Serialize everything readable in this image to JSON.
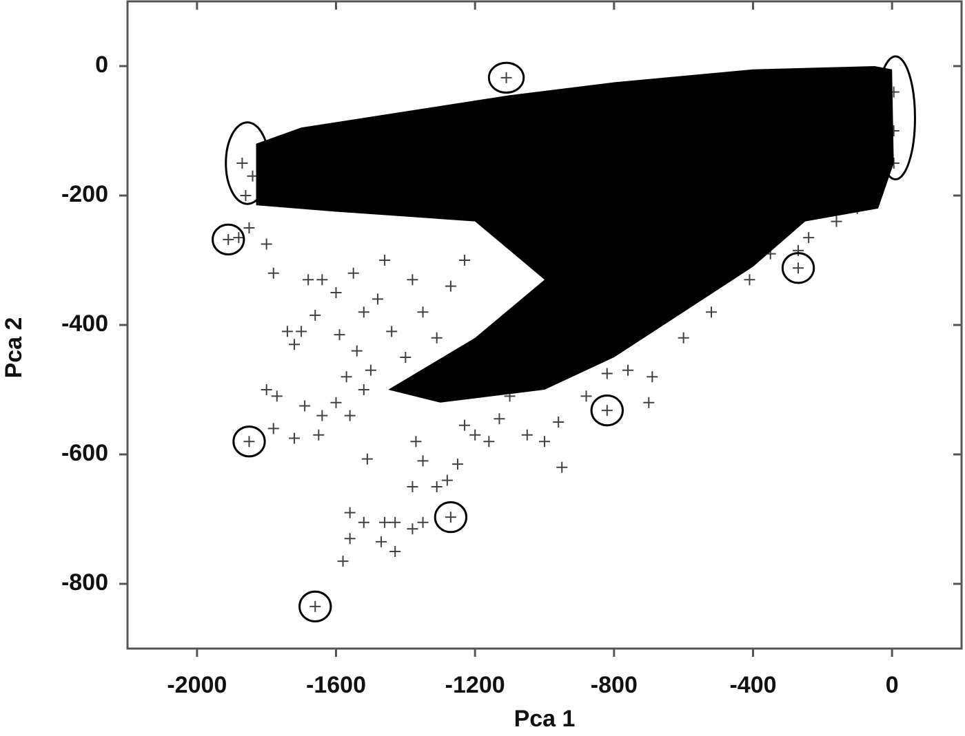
{
  "chart_data": {
    "type": "scatter",
    "xlabel": "Pca 1",
    "ylabel": "Pca 2",
    "xlim": [
      -2200,
      200
    ],
    "ylim": [
      -900,
      100
    ],
    "xticks": [
      -2000,
      -1600,
      -1200,
      -800,
      -400,
      0
    ],
    "yticks": [
      0,
      -200,
      -400,
      -600,
      -800
    ],
    "color": "#000000",
    "x": [
      -1880,
      -1850,
      -1800,
      -1780,
      -1740,
      -1700,
      -1660,
      -1680,
      -1640,
      -1720,
      -1800,
      -1770,
      -1720,
      -1780,
      -1690,
      -1650,
      -1640,
      -1600,
      -1570,
      -1560,
      -1520,
      -1590,
      -1540,
      -1500,
      -1480,
      -1520,
      -1440,
      -1400,
      -1380,
      -1350,
      -1310,
      -1270,
      -1230,
      -1550,
      -1600,
      -1460,
      -1370,
      -1380,
      -1350,
      -1310,
      -1250,
      -1230,
      -1200,
      -1160,
      -1130,
      -1100,
      -1050,
      -1000,
      -950,
      -960,
      -1510,
      -1520,
      -1460,
      -1430,
      -1470,
      -1430,
      -1560,
      -1580,
      -1560,
      -1380,
      -1350,
      -1280,
      -880,
      -820,
      -760,
      -700,
      -690,
      -600,
      -520,
      -410,
      -350,
      -270,
      -240,
      -160,
      -100,
      -1110,
      -1910,
      -1850,
      -1270,
      -1660,
      -820,
      -270,
      -1870,
      -1840,
      -1860,
      5,
      5,
      5
    ],
    "y": [
      -265,
      -250,
      -275,
      -320,
      -410,
      -410,
      -385,
      -330,
      -330,
      -430,
      -500,
      -510,
      -575,
      -560,
      -525,
      -570,
      -540,
      -520,
      -480,
      -540,
      -500,
      -415,
      -440,
      -470,
      -360,
      -380,
      -410,
      -450,
      -330,
      -380,
      -420,
      -340,
      -300,
      -320,
      -350,
      -300,
      -580,
      -650,
      -610,
      -650,
      -615,
      -555,
      -570,
      -580,
      -545,
      -510,
      -570,
      -580,
      -620,
      -550,
      -607,
      -705,
      -705,
      -705,
      -735,
      -750,
      -730,
      -765,
      -690,
      -715,
      -705,
      -640,
      -510,
      -475,
      -470,
      -520,
      -480,
      -420,
      -380,
      -330,
      -290,
      -285,
      -265,
      -240,
      -220,
      -18,
      -268,
      -580,
      -697,
      -835,
      -532,
      -312,
      -150,
      -170,
      -200,
      -40,
      -100,
      -150
    ],
    "dense_region": {
      "x": [
        -1830,
        -1700,
        -1400,
        -1100,
        -800,
        -400,
        -50,
        0,
        5,
        -40,
        -250,
        -400,
        -600,
        -800,
        -1000,
        -1300,
        -1450,
        -1200,
        -1000,
        -1200,
        -1600,
        -1830
      ],
      "y": [
        -120,
        -95,
        -70,
        -45,
        -25,
        -5,
        0,
        -5,
        -150,
        -220,
        -240,
        -310,
        -380,
        -450,
        -500,
        -520,
        -500,
        -420,
        -330,
        -240,
        -225,
        -215
      ]
    },
    "highlighted": [
      {
        "x": -1110,
        "y": -18,
        "rx": 50,
        "ry": 23
      },
      {
        "x": -1910,
        "y": -268,
        "rx": 45,
        "ry": 23
      },
      {
        "x": -1850,
        "y": -580,
        "rx": 45,
        "ry": 23
      },
      {
        "x": -1270,
        "y": -697,
        "rx": 45,
        "ry": 23
      },
      {
        "x": -1660,
        "y": -835,
        "rx": 45,
        "ry": 23
      },
      {
        "x": -820,
        "y": -532,
        "rx": 45,
        "ry": 23
      },
      {
        "x": -270,
        "y": -312,
        "rx": 45,
        "ry": 23
      },
      {
        "x": -1855,
        "y": -150,
        "rx": 62,
        "ry": 63
      },
      {
        "x": 10,
        "y": -80,
        "rx": 56,
        "ry": 95
      }
    ]
  }
}
